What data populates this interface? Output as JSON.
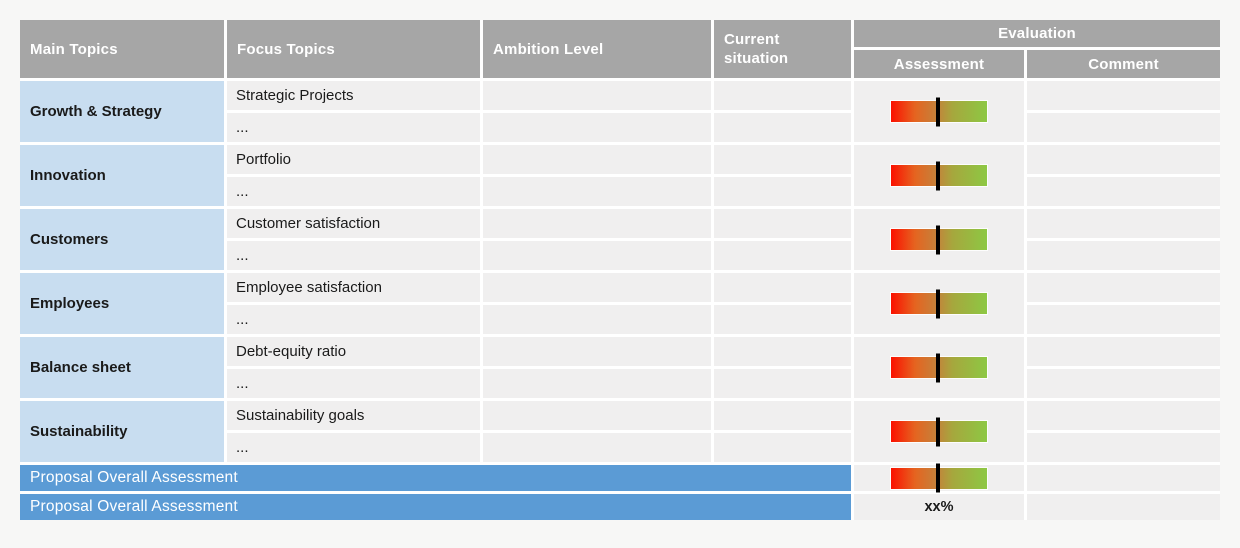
{
  "colors": {
    "page_bg": "#f7f7f6",
    "header_bg": "#a6a6a6",
    "header_text": "#ffffff",
    "cell_bg": "#f0efef",
    "main_topic_bg": "#c8ddf0",
    "overall_row_bg": "#5b9bd5",
    "text": "#1a1a1a",
    "bar_marker": "#000000",
    "bar_gradient": [
      "#fb1000",
      "#e56420 25%",
      "#c5813a 47%",
      "#a6a73d 64%",
      "#8dc844"
    ]
  },
  "header": {
    "main_topics": "Main Topics",
    "focus_topics": "Focus Topics",
    "ambition_level": "Ambition Level",
    "current_situation": "Current situation",
    "evaluation": "Evaluation",
    "assessment": "Assessment",
    "comment": "Comment"
  },
  "groups": [
    {
      "main": "Growth & Strategy",
      "focus": "Strategic Projects",
      "more": "..."
    },
    {
      "main": "Innovation",
      "focus": "Portfolio",
      "more": "..."
    },
    {
      "main": "Customers",
      "focus": "Customer satisfaction",
      "more": "..."
    },
    {
      "main": "Employees",
      "focus": "Employee satisfaction",
      "more": "..."
    },
    {
      "main": "Balance sheet",
      "focus": "Debt-equity ratio",
      "more": "..."
    },
    {
      "main": "Sustainability",
      "focus": "Sustainability goals",
      "more": "..."
    }
  ],
  "overall": {
    "row1_label": "Proposal Overall Assessment",
    "row2_label": "Proposal Overall Assessment",
    "row2_value": "xx%"
  },
  "assessment_bar": {
    "marker_position_pct": 48.5
  }
}
